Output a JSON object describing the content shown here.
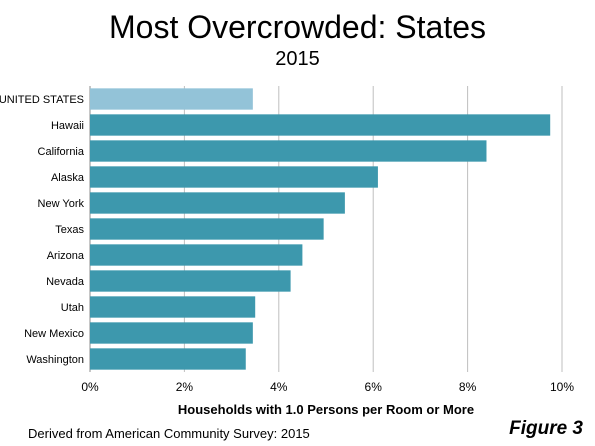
{
  "header": {
    "title": "Most Overcrowded: States",
    "subtitle": "2015"
  },
  "footer": {
    "source": "Derived from American Community Survey: 2015",
    "figure_label": "Figure 3"
  },
  "colors": {
    "highlight": "#93c3d8",
    "bar": "#3d98ad",
    "grid": "#bfbfbf",
    "axis": "#8c8c8c"
  },
  "chart_data": {
    "type": "bar",
    "orientation": "horizontal",
    "title": "Most Overcrowded: States",
    "subtitle": "2015",
    "xlabel": "Households with 1.0 Persons per Room or More",
    "ylabel": "",
    "categories": [
      "UNITED STATES",
      "Hawaii",
      "California",
      "Alaska",
      "New York",
      "Texas",
      "Arizona",
      "Nevada",
      "Utah",
      "New Mexico",
      "Washington"
    ],
    "values": [
      3.45,
      9.75,
      8.4,
      6.1,
      5.4,
      4.95,
      4.5,
      4.25,
      3.5,
      3.45,
      3.3
    ],
    "highlighted_category": "UNITED STATES",
    "xlim": [
      0,
      10
    ],
    "xticks": [
      0,
      2,
      4,
      6,
      8,
      10
    ],
    "xtick_labels": [
      "0%",
      "2%",
      "4%",
      "6%",
      "8%",
      "10%"
    ],
    "grid": "vertical",
    "legend": "none"
  }
}
